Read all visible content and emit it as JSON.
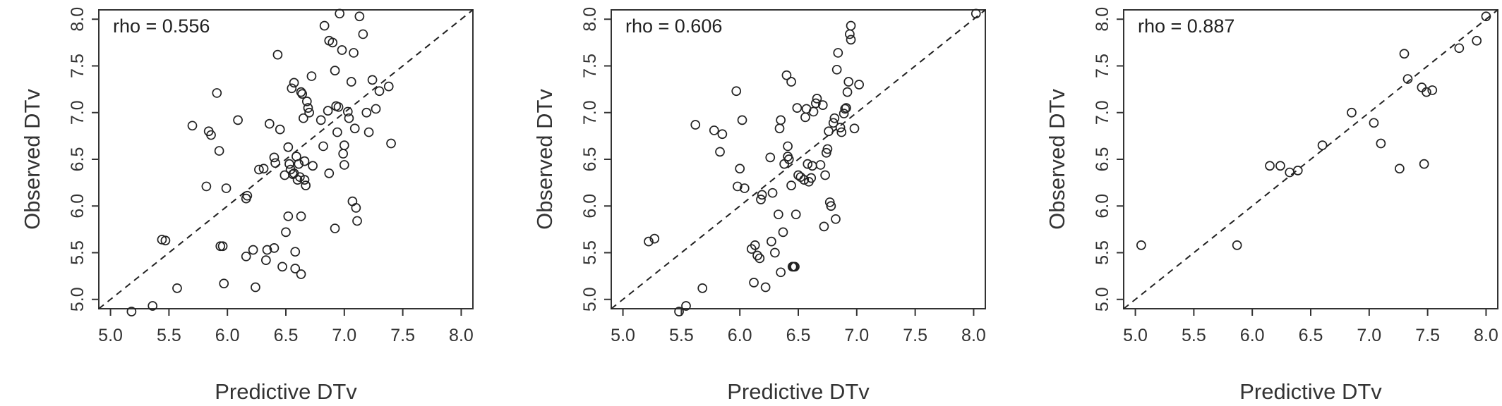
{
  "chart_data": [
    {
      "type": "scatter",
      "title": "",
      "annotation": "rho = 0.556",
      "xlabel": "Predictive DTv",
      "ylabel": "Observed DTv",
      "xlim": [
        4.9,
        8.1
      ],
      "ylim": [
        4.9,
        8.1
      ],
      "xticks": [
        "5.0",
        "5.5",
        "6.0",
        "6.5",
        "7.0",
        "7.5",
        "8.0"
      ],
      "yticks": [
        "5.0",
        "5.5",
        "6.0",
        "6.5",
        "7.0",
        "7.5",
        "8.0"
      ],
      "reference_line": "y = x",
      "grid": false,
      "points": [
        [
          5.18,
          4.87
        ],
        [
          5.36,
          4.93
        ],
        [
          5.44,
          5.64
        ],
        [
          5.47,
          5.63
        ],
        [
          5.57,
          5.12
        ],
        [
          5.7,
          6.86
        ],
        [
          5.82,
          6.21
        ],
        [
          5.84,
          6.8
        ],
        [
          5.86,
          6.76
        ],
        [
          5.91,
          7.21
        ],
        [
          5.93,
          6.59
        ],
        [
          5.94,
          5.57
        ],
        [
          5.96,
          5.57
        ],
        [
          5.97,
          5.17
        ],
        [
          5.99,
          6.19
        ],
        [
          6.09,
          6.92
        ],
        [
          6.16,
          6.08
        ],
        [
          6.17,
          6.11
        ],
        [
          6.16,
          5.46
        ],
        [
          6.22,
          5.53
        ],
        [
          6.24,
          5.13
        ],
        [
          6.27,
          6.39
        ],
        [
          6.31,
          6.4
        ],
        [
          6.33,
          5.42
        ],
        [
          6.34,
          5.53
        ],
        [
          6.36,
          6.88
        ],
        [
          6.4,
          6.52
        ],
        [
          6.41,
          6.46
        ],
        [
          6.4,
          5.55
        ],
        [
          6.43,
          7.62
        ],
        [
          6.45,
          6.82
        ],
        [
          6.47,
          5.35
        ],
        [
          6.49,
          6.33
        ],
        [
          6.5,
          5.72
        ],
        [
          6.52,
          6.63
        ],
        [
          6.52,
          5.89
        ],
        [
          6.53,
          6.45
        ],
        [
          6.54,
          6.39
        ],
        [
          6.55,
          7.26
        ],
        [
          6.56,
          6.34
        ],
        [
          6.57,
          6.35
        ],
        [
          6.57,
          7.32
        ],
        [
          6.58,
          5.51
        ],
        [
          6.58,
          5.33
        ],
        [
          6.59,
          6.53
        ],
        [
          6.6,
          6.28
        ],
        [
          6.61,
          6.45
        ],
        [
          6.62,
          6.31
        ],
        [
          6.63,
          7.22
        ],
        [
          6.63,
          5.89
        ],
        [
          6.63,
          5.27
        ],
        [
          6.64,
          7.2
        ],
        [
          6.65,
          6.94
        ],
        [
          6.66,
          6.48
        ],
        [
          6.66,
          6.28
        ],
        [
          6.67,
          6.22
        ],
        [
          6.68,
          7.12
        ],
        [
          6.69,
          7.05
        ],
        [
          6.7,
          7.0
        ],
        [
          6.72,
          7.39
        ],
        [
          6.73,
          6.43
        ],
        [
          6.8,
          6.92
        ],
        [
          6.82,
          6.64
        ],
        [
          6.83,
          7.93
        ],
        [
          6.86,
          7.02
        ],
        [
          6.87,
          7.77
        ],
        [
          6.87,
          6.35
        ],
        [
          6.9,
          7.75
        ],
        [
          6.92,
          7.45
        ],
        [
          6.92,
          5.76
        ],
        [
          6.93,
          7.07
        ],
        [
          6.94,
          6.79
        ],
        [
          6.95,
          7.06
        ],
        [
          6.96,
          8.06
        ],
        [
          6.98,
          7.67
        ],
        [
          6.99,
          6.56
        ],
        [
          7.0,
          6.44
        ],
        [
          7.0,
          6.65
        ],
        [
          7.03,
          7.01
        ],
        [
          7.04,
          6.94
        ],
        [
          7.06,
          7.33
        ],
        [
          7.07,
          6.05
        ],
        [
          7.08,
          7.64
        ],
        [
          7.09,
          6.83
        ],
        [
          7.1,
          5.98
        ],
        [
          7.11,
          5.84
        ],
        [
          7.13,
          8.03
        ],
        [
          7.16,
          7.84
        ],
        [
          7.19,
          7.0
        ],
        [
          7.21,
          6.79
        ],
        [
          7.24,
          7.35
        ],
        [
          7.27,
          7.04
        ],
        [
          7.3,
          7.23
        ],
        [
          7.38,
          7.28
        ],
        [
          7.4,
          6.67
        ]
      ]
    },
    {
      "type": "scatter",
      "title": "",
      "annotation": "rho = 0.606",
      "xlabel": "Predictive DTv",
      "ylabel": "Observed DTv",
      "xlim": [
        4.9,
        8.1
      ],
      "ylim": [
        4.9,
        8.1
      ],
      "xticks": [
        "5.0",
        "5.5",
        "6.0",
        "6.5",
        "7.0",
        "7.5",
        "8.0"
      ],
      "yticks": [
        "5.0",
        "5.5",
        "6.0",
        "6.5",
        "7.0",
        "7.5",
        "8.0"
      ],
      "reference_line": "y = x",
      "grid": false,
      "points": [
        [
          5.22,
          5.62
        ],
        [
          5.27,
          5.65
        ],
        [
          5.48,
          4.87
        ],
        [
          5.54,
          4.93
        ],
        [
          5.62,
          6.87
        ],
        [
          5.68,
          5.12
        ],
        [
          5.78,
          6.81
        ],
        [
          5.83,
          6.58
        ],
        [
          5.85,
          6.77
        ],
        [
          5.97,
          7.23
        ],
        [
          5.98,
          6.21
        ],
        [
          6.0,
          6.4
        ],
        [
          6.02,
          6.92
        ],
        [
          6.04,
          6.19
        ],
        [
          6.1,
          5.54
        ],
        [
          6.12,
          5.18
        ],
        [
          6.13,
          5.58
        ],
        [
          6.15,
          5.47
        ],
        [
          6.17,
          5.44
        ],
        [
          6.18,
          6.07
        ],
        [
          6.19,
          6.12
        ],
        [
          6.22,
          5.13
        ],
        [
          6.26,
          6.52
        ],
        [
          6.27,
          5.62
        ],
        [
          6.28,
          6.14
        ],
        [
          6.3,
          5.5
        ],
        [
          6.33,
          5.91
        ],
        [
          6.34,
          6.83
        ],
        [
          6.35,
          5.29
        ],
        [
          6.35,
          6.92
        ],
        [
          6.37,
          5.72
        ],
        [
          6.38,
          6.45
        ],
        [
          6.4,
          7.4
        ],
        [
          6.41,
          6.53
        ],
        [
          6.41,
          6.64
        ],
        [
          6.42,
          6.5
        ],
        [
          6.44,
          7.33
        ],
        [
          6.44,
          6.22
        ],
        [
          6.45,
          5.35
        ],
        [
          6.46,
          5.35
        ],
        [
          6.47,
          5.35
        ],
        [
          6.48,
          5.91
        ],
        [
          6.49,
          7.05
        ],
        [
          6.5,
          6.33
        ],
        [
          6.52,
          6.31
        ],
        [
          6.55,
          6.28
        ],
        [
          6.56,
          6.95
        ],
        [
          6.57,
          7.04
        ],
        [
          6.58,
          6.45
        ],
        [
          6.59,
          6.26
        ],
        [
          6.61,
          6.3
        ],
        [
          6.62,
          6.43
        ],
        [
          6.63,
          7.01
        ],
        [
          6.65,
          7.1
        ],
        [
          6.66,
          7.15
        ],
        [
          6.69,
          6.44
        ],
        [
          6.71,
          7.08
        ],
        [
          6.72,
          5.78
        ],
        [
          6.73,
          6.33
        ],
        [
          6.74,
          6.57
        ],
        [
          6.75,
          6.61
        ],
        [
          6.76,
          6.8
        ],
        [
          6.77,
          6.04
        ],
        [
          6.78,
          6.0
        ],
        [
          6.8,
          6.89
        ],
        [
          6.81,
          6.94
        ],
        [
          6.82,
          5.86
        ],
        [
          6.83,
          7.46
        ],
        [
          6.84,
          7.64
        ],
        [
          6.86,
          6.84
        ],
        [
          6.87,
          6.79
        ],
        [
          6.89,
          6.99
        ],
        [
          6.9,
          7.04
        ],
        [
          6.91,
          7.05
        ],
        [
          6.92,
          7.22
        ],
        [
          6.93,
          7.33
        ],
        [
          6.94,
          7.84
        ],
        [
          6.95,
          7.78
        ],
        [
          6.95,
          7.93
        ],
        [
          6.98,
          6.83
        ],
        [
          7.02,
          7.3
        ],
        [
          8.02,
          8.06
        ]
      ]
    },
    {
      "type": "scatter",
      "title": "",
      "annotation": "rho = 0.887",
      "xlabel": "Predictive DTv",
      "ylabel": "Observed DTv",
      "xlim": [
        4.9,
        8.1
      ],
      "ylim": [
        4.9,
        8.1
      ],
      "xticks": [
        "5.0",
        "5.5",
        "6.0",
        "6.5",
        "7.0",
        "7.5",
        "8.0"
      ],
      "yticks": [
        "5.0",
        "5.5",
        "6.0",
        "6.5",
        "7.0",
        "7.5",
        "8.0"
      ],
      "reference_line": "y = x",
      "grid": false,
      "points": [
        [
          5.05,
          5.58
        ],
        [
          5.87,
          5.58
        ],
        [
          6.15,
          6.43
        ],
        [
          6.24,
          6.43
        ],
        [
          6.32,
          6.36
        ],
        [
          6.39,
          6.38
        ],
        [
          6.6,
          6.65
        ],
        [
          6.85,
          7.0
        ],
        [
          7.04,
          6.89
        ],
        [
          7.1,
          6.67
        ],
        [
          7.26,
          6.4
        ],
        [
          7.3,
          7.63
        ],
        [
          7.33,
          7.36
        ],
        [
          7.45,
          7.27
        ],
        [
          7.47,
          6.45
        ],
        [
          7.49,
          7.22
        ],
        [
          7.54,
          7.24
        ],
        [
          7.77,
          7.69
        ],
        [
          7.92,
          7.77
        ],
        [
          8.0,
          8.03
        ]
      ]
    }
  ]
}
